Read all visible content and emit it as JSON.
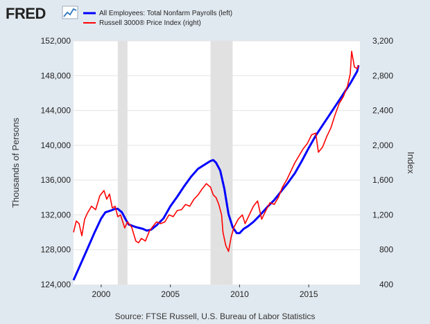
{
  "logo": {
    "text": "FRED"
  },
  "source": "Source: FTSE Russell, U.S. Bureau of Labor Statistics",
  "chart_data": {
    "type": "line",
    "xlabel": "",
    "ylabel_left": "Thousands of Persons",
    "ylabel_right": "Index",
    "xlim": [
      1998.0,
      2018.7
    ],
    "ylim_left": [
      124000,
      152000
    ],
    "ylim_right": [
      400,
      3200
    ],
    "x_ticks": [
      2000,
      2005,
      2010,
      2015
    ],
    "x_tick_labels": [
      "2000",
      "2005",
      "2010",
      "2015"
    ],
    "y_left_ticks": [
      124000,
      128000,
      132000,
      136000,
      140000,
      144000,
      148000,
      152000
    ],
    "y_left_tick_labels": [
      "124,000",
      "128,000",
      "132,000",
      "136,000",
      "140,000",
      "144,000",
      "148,000",
      "152,000"
    ],
    "y_right_ticks": [
      400,
      800,
      1200,
      1600,
      2000,
      2400,
      2800,
      3200
    ],
    "y_right_tick_labels": [
      "400",
      "800",
      "1,200",
      "1,600",
      "2,000",
      "2,400",
      "2,800",
      "3,200"
    ],
    "grid": "horizontal",
    "legend_position": "top",
    "recessions": [
      [
        2001.2,
        2001.9
      ],
      [
        2007.9,
        2009.5
      ]
    ],
    "series": [
      {
        "name": "All Employees: Total Nonfarm Payrolls (left)",
        "axis": "left",
        "color": "#0000ff",
        "x": [
          1998.0,
          1998.5,
          1999.0,
          1999.5,
          2000.0,
          2000.3,
          2000.7,
          2001.0,
          2001.2,
          2001.5,
          2001.8,
          2002.0,
          2002.5,
          2003.0,
          2003.3,
          2003.6,
          2004.0,
          2004.5,
          2005.0,
          2005.5,
          2006.0,
          2006.5,
          2007.0,
          2007.5,
          2007.9,
          2008.1,
          2008.3,
          2008.6,
          2008.9,
          2009.2,
          2009.5,
          2009.8,
          2010.0,
          2010.3,
          2010.6,
          2011.0,
          2011.5,
          2012.0,
          2012.5,
          2013.0,
          2013.5,
          2014.0,
          2014.5,
          2015.0,
          2015.5,
          2016.0,
          2016.5,
          2017.0,
          2017.5,
          2018.0,
          2018.5,
          2018.6
        ],
        "y": [
          124500,
          126300,
          128100,
          129900,
          131600,
          132300,
          132500,
          132700,
          132700,
          132300,
          131400,
          130900,
          130600,
          130400,
          130200,
          130300,
          130800,
          131600,
          133000,
          134100,
          135300,
          136400,
          137300,
          137800,
          138200,
          138300,
          138000,
          137100,
          135000,
          132100,
          130600,
          129900,
          129900,
          130400,
          130700,
          131200,
          132000,
          132900,
          133700,
          134700,
          135700,
          136800,
          138200,
          139700,
          141100,
          142300,
          143500,
          144700,
          145900,
          147100,
          148500,
          149200
        ]
      },
      {
        "name": "Russell 3000® Price Index (right)",
        "axis": "right",
        "color": "#ff0000",
        "x": [
          1998.0,
          1998.2,
          1998.4,
          1998.6,
          1998.8,
          1999.0,
          1999.3,
          1999.6,
          1999.9,
          2000.2,
          2000.4,
          2000.6,
          2000.8,
          2001.0,
          2001.2,
          2001.4,
          2001.7,
          2001.9,
          2002.2,
          2002.5,
          2002.7,
          2002.9,
          2003.2,
          2003.5,
          2003.8,
          2004.0,
          2004.3,
          2004.6,
          2004.9,
          2005.2,
          2005.5,
          2005.8,
          2006.1,
          2006.4,
          2006.7,
          2007.0,
          2007.3,
          2007.6,
          2007.9,
          2008.1,
          2008.3,
          2008.5,
          2008.7,
          2008.8,
          2009.0,
          2009.2,
          2009.4,
          2009.6,
          2009.9,
          2010.2,
          2010.4,
          2010.7,
          2011.0,
          2011.3,
          2011.6,
          2011.9,
          2012.2,
          2012.5,
          2012.8,
          2013.1,
          2013.4,
          2013.7,
          2014.0,
          2014.3,
          2014.6,
          2014.9,
          2015.2,
          2015.5,
          2015.7,
          2016.0,
          2016.3,
          2016.6,
          2016.9,
          2017.2,
          2017.5,
          2017.8,
          2018.0,
          2018.1,
          2018.3,
          2018.5,
          2018.6
        ],
        "y": [
          1000,
          1130,
          1100,
          960,
          1150,
          1220,
          1300,
          1260,
          1420,
          1480,
          1380,
          1440,
          1280,
          1300,
          1180,
          1200,
          1050,
          1120,
          1060,
          900,
          880,
          930,
          900,
          1020,
          1080,
          1120,
          1100,
          1120,
          1200,
          1180,
          1250,
          1260,
          1320,
          1300,
          1380,
          1430,
          1500,
          1560,
          1520,
          1430,
          1400,
          1320,
          1200,
          1000,
          850,
          780,
          950,
          1060,
          1150,
          1200,
          1100,
          1200,
          1300,
          1360,
          1150,
          1250,
          1340,
          1320,
          1400,
          1520,
          1600,
          1700,
          1800,
          1880,
          1960,
          2020,
          2120,
          2140,
          1920,
          1980,
          2100,
          2200,
          2350,
          2480,
          2560,
          2680,
          2820,
          3080,
          2900,
          2880,
          2920
        ]
      }
    ]
  }
}
